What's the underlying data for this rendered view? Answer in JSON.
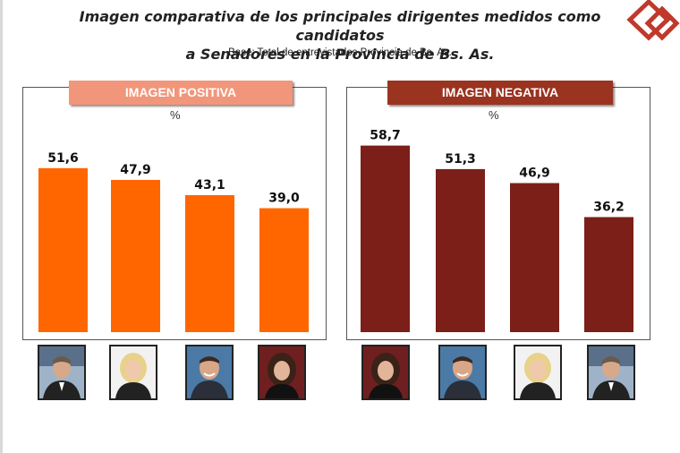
{
  "header": {
    "title_line1": "Imagen comparativa de los principales dirigentes medidos como candidatos",
    "title_line2": "a Senadores en la Provincia de Bs. As.",
    "subtitle": "Base: Total de entrevistados Provincia de Bs. As."
  },
  "chart_data": [
    {
      "type": "bar",
      "title": "IMAGEN POSITIVA",
      "unit": "%",
      "values": [
        51.6,
        47.9,
        43.1,
        39.0
      ],
      "value_labels": [
        "51,6",
        "47,9",
        "43,1",
        "39,0"
      ],
      "ylim": [
        0,
        60
      ],
      "color": "#ff6600"
    },
    {
      "type": "bar",
      "title": "IMAGEN NEGATIVA",
      "unit": "%",
      "values": [
        58.7,
        51.3,
        46.9,
        36.2
      ],
      "value_labels": [
        "58,7",
        "51,3",
        "46,9",
        "36,2"
      ],
      "ylim": [
        0,
        60
      ],
      "color": "#7b1f18"
    }
  ],
  "photos": {
    "positive": [
      "portrait-man-suit",
      "portrait-blonde-woman",
      "portrait-man-smiling",
      "portrait-dark-haired-woman"
    ],
    "negative": [
      "portrait-dark-haired-woman",
      "portrait-man-smiling",
      "portrait-blonde-woman",
      "portrait-man-suit"
    ]
  },
  "colors": {
    "positive_header": "#f1967a",
    "negative_header": "#9a3320",
    "logo": "#c0392b"
  }
}
